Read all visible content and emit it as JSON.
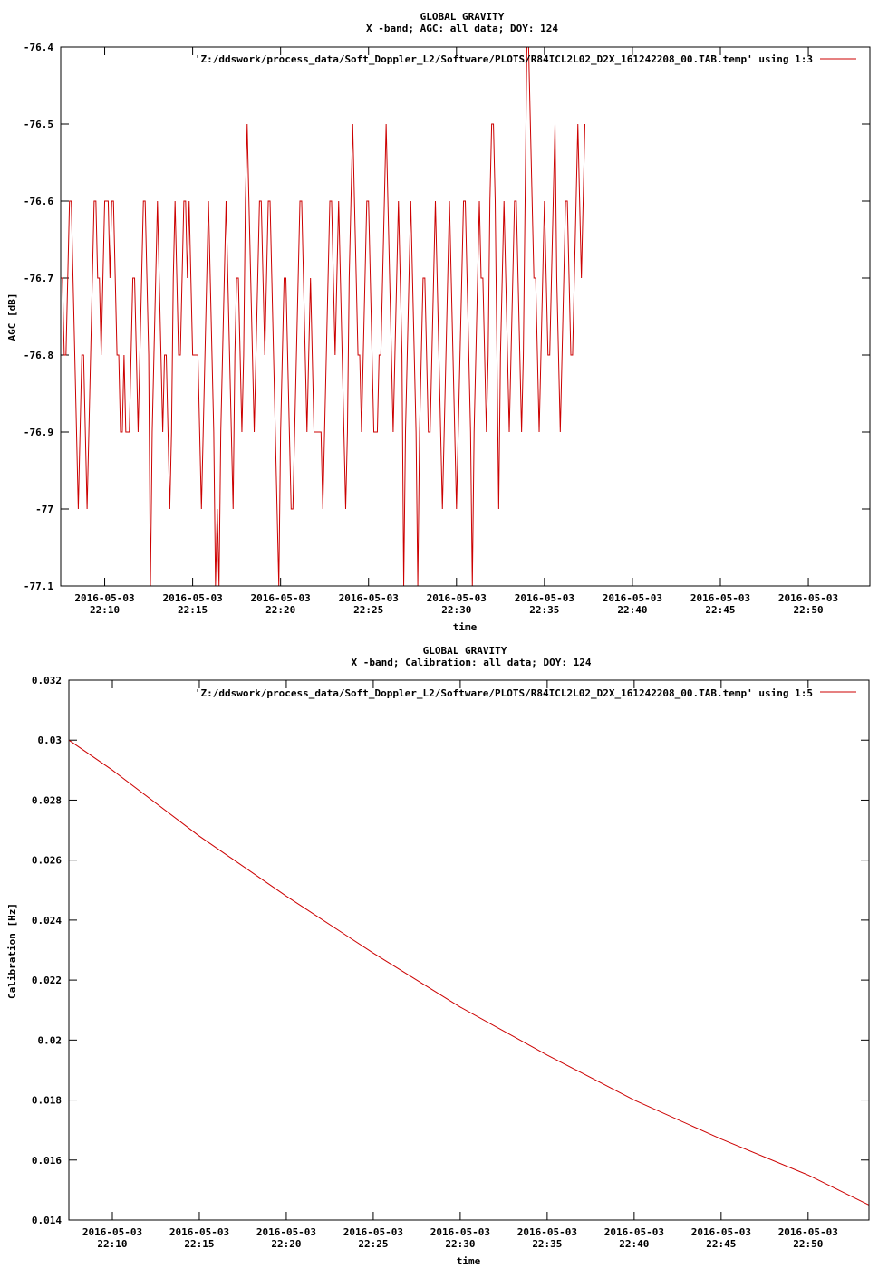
{
  "chart_data": [
    {
      "type": "line",
      "title": "GLOBAL GRAVITY",
      "subtitle": "X -band; AGC: all data; DOY: 124",
      "xlabel": "time",
      "ylabel": "AGC [dB]",
      "ylim": [
        -77.1,
        -76.4
      ],
      "y_ticks": [
        -76.4,
        -76.5,
        -76.6,
        -76.7,
        -76.8,
        -76.9,
        -77,
        -77.1
      ],
      "y_tick_labels": [
        "-76.4",
        "-76.5",
        "-76.6",
        "-76.7",
        "-76.8",
        "-76.9",
        "-77",
        "-77.1"
      ],
      "xlim": [
        "2016-05-03 22:07:30",
        "2016-05-03 22:53:30"
      ],
      "x_ticks": [
        "22:10",
        "22:15",
        "22:20",
        "22:25",
        "22:30",
        "22:35",
        "22:40",
        "22:45",
        "22:50"
      ],
      "x_tick_dates": [
        "2016-05-03",
        "2016-05-03",
        "2016-05-03",
        "2016-05-03",
        "2016-05-03",
        "2016-05-03",
        "2016-05-03",
        "2016-05-03",
        "2016-05-03"
      ],
      "legend": "top-right",
      "series": [
        {
          "name": "'Z:/ddswork/process_data/Soft_Doppler_L2/Software/PLOTS/R84ICL2L02_D2X_161242208_00.TAB.temp' using 1:3",
          "color": "#cc0000",
          "sample_start": "22:07:30",
          "sample_step_seconds": 6,
          "values": [
            -76.7,
            -76.7,
            -76.8,
            -76.8,
            -76.7,
            -76.6,
            -76.6,
            -76.7,
            -76.8,
            -76.9,
            -77,
            -76.9,
            -76.8,
            -76.8,
            -76.9,
            -77,
            -76.9,
            -76.8,
            -76.7,
            -76.6,
            -76.6,
            -76.7,
            -76.7,
            -76.8,
            -76.7,
            -76.6,
            -76.6,
            -76.6,
            -76.7,
            -76.6,
            -76.6,
            -76.7,
            -76.8,
            -76.8,
            -76.9,
            -76.9,
            -76.8,
            -76.9,
            -76.9,
            -76.9,
            -76.8,
            -76.7,
            -76.7,
            -76.8,
            -76.9,
            -76.8,
            -76.7,
            -76.6,
            -76.6,
            -76.7,
            -76.8,
            -77.1,
            -76.9,
            -76.8,
            -76.7,
            -76.6,
            -76.7,
            -76.8,
            -76.9,
            -76.8,
            -76.8,
            -76.9,
            -77,
            -76.9,
            -76.7,
            -76.6,
            -76.7,
            -76.8,
            -76.8,
            -76.7,
            -76.6,
            -76.6,
            -76.7,
            -76.6,
            -76.7,
            -76.8,
            -76.8,
            -76.8,
            -76.8,
            -76.9,
            -77,
            -76.9,
            -76.8,
            -76.7,
            -76.6,
            -76.7,
            -76.8,
            -76.9,
            -77.1,
            -77,
            -77.1,
            -76.9,
            -76.8,
            -76.7,
            -76.6,
            -76.7,
            -76.8,
            -76.9,
            -77,
            -76.8,
            -76.7,
            -76.7,
            -76.8,
            -76.9,
            -76.8,
            -76.6,
            -76.5,
            -76.6,
            -76.7,
            -76.8,
            -76.9,
            -76.8,
            -76.7,
            -76.6,
            -76.6,
            -76.7,
            -76.8,
            -76.7,
            -76.6,
            -76.6,
            -76.7,
            -76.8,
            -76.9,
            -77,
            -77.1,
            -76.9,
            -76.8,
            -76.7,
            -76.7,
            -76.8,
            -76.9,
            -77,
            -77,
            -76.9,
            -76.8,
            -76.7,
            -76.6,
            -76.6,
            -76.7,
            -76.8,
            -76.9,
            -76.8,
            -76.7,
            -76.8,
            -76.9,
            -76.9,
            -76.9,
            -76.9,
            -76.9,
            -77,
            -76.9,
            -76.8,
            -76.7,
            -76.6,
            -76.6,
            -76.7,
            -76.8,
            -76.7,
            -76.6,
            -76.7,
            -76.8,
            -76.9,
            -77,
            -76.9,
            -76.7,
            -76.6,
            -76.5,
            -76.6,
            -76.7,
            -76.8,
            -76.8,
            -76.9,
            -76.8,
            -76.7,
            -76.6,
            -76.6,
            -76.7,
            -76.8,
            -76.9,
            -76.9,
            -76.9,
            -76.8,
            -76.8,
            -76.7,
            -76.6,
            -76.5,
            -76.6,
            -76.7,
            -76.8,
            -76.9,
            -76.8,
            -76.7,
            -76.6,
            -76.7,
            -76.8,
            -77.1,
            -76.9,
            -76.8,
            -76.7,
            -76.6,
            -76.7,
            -76.8,
            -76.9,
            -77.1,
            -76.9,
            -76.8,
            -76.7,
            -76.7,
            -76.8,
            -76.9,
            -76.9,
            -76.8,
            -76.7,
            -76.6,
            -76.7,
            -76.8,
            -76.9,
            -77,
            -76.9,
            -76.8,
            -76.7,
            -76.6,
            -76.7,
            -76.8,
            -76.9,
            -77,
            -76.9,
            -76.8,
            -76.7,
            -76.6,
            -76.6,
            -76.7,
            -76.8,
            -76.9,
            -77.1,
            -76.9,
            -76.8,
            -76.7,
            -76.6,
            -76.7,
            -76.7,
            -76.8,
            -76.9,
            -76.8,
            -76.6,
            -76.5,
            -76.5,
            -76.6,
            -76.8,
            -77,
            -76.8,
            -76.7,
            -76.6,
            -76.7,
            -76.8,
            -76.9,
            -76.8,
            -76.7,
            -76.6,
            -76.6,
            -76.7,
            -76.8,
            -76.9,
            -76.8,
            -76.6,
            -76.4,
            -76.4,
            -76.5,
            -76.6,
            -76.7,
            -76.7,
            -76.8,
            -76.9,
            -76.8,
            -76.7,
            -76.6,
            -76.7,
            -76.8,
            -76.8,
            -76.7,
            -76.6,
            -76.5,
            -76.7,
            -76.8,
            -76.9,
            -76.8,
            -76.7,
            -76.6,
            -76.6,
            -76.7,
            -76.8,
            -76.8,
            -76.7,
            -76.6,
            -76.5,
            -76.6,
            -76.7,
            -76.6,
            -76.5
          ]
        }
      ]
    },
    {
      "type": "line",
      "title": "GLOBAL GRAVITY",
      "subtitle": "X -band; Calibration: all data; DOY: 124",
      "xlabel": "time",
      "ylabel": "Calibration [Hz]",
      "ylim": [
        0.014,
        0.032
      ],
      "y_ticks": [
        0.014,
        0.016,
        0.018,
        0.02,
        0.022,
        0.024,
        0.026,
        0.028,
        0.03,
        0.032
      ],
      "y_tick_labels": [
        "0.014",
        "0.016",
        "0.018",
        "0.02",
        "0.022",
        "0.024",
        "0.026",
        "0.028",
        "0.03",
        "0.032"
      ],
      "xlim": [
        "2016-05-03 22:07:30",
        "2016-05-03 22:53:30"
      ],
      "x_ticks": [
        "22:10",
        "22:15",
        "22:20",
        "22:25",
        "22:30",
        "22:35",
        "22:40",
        "22:45",
        "22:50"
      ],
      "x_tick_dates": [
        "2016-05-03",
        "2016-05-03",
        "2016-05-03",
        "2016-05-03",
        "2016-05-03",
        "2016-05-03",
        "2016-05-03",
        "2016-05-03",
        "2016-05-03"
      ],
      "legend": "top-right",
      "series": [
        {
          "name": "'Z:/ddswork/process_data/Soft_Doppler_L2/Software/PLOTS/R84ICL2L02_D2X_161242208_00.TAB.temp' using 1:5",
          "color": "#cc0000",
          "x": [
            "22:07:30",
            "22:10",
            "22:15",
            "22:20",
            "22:25",
            "22:30",
            "22:35",
            "22:40",
            "22:45",
            "22:50",
            "22:53:30"
          ],
          "values": [
            0.03,
            0.029,
            0.0268,
            0.0248,
            0.0229,
            0.0211,
            0.0195,
            0.018,
            0.0167,
            0.0155,
            0.0145
          ]
        }
      ]
    }
  ]
}
